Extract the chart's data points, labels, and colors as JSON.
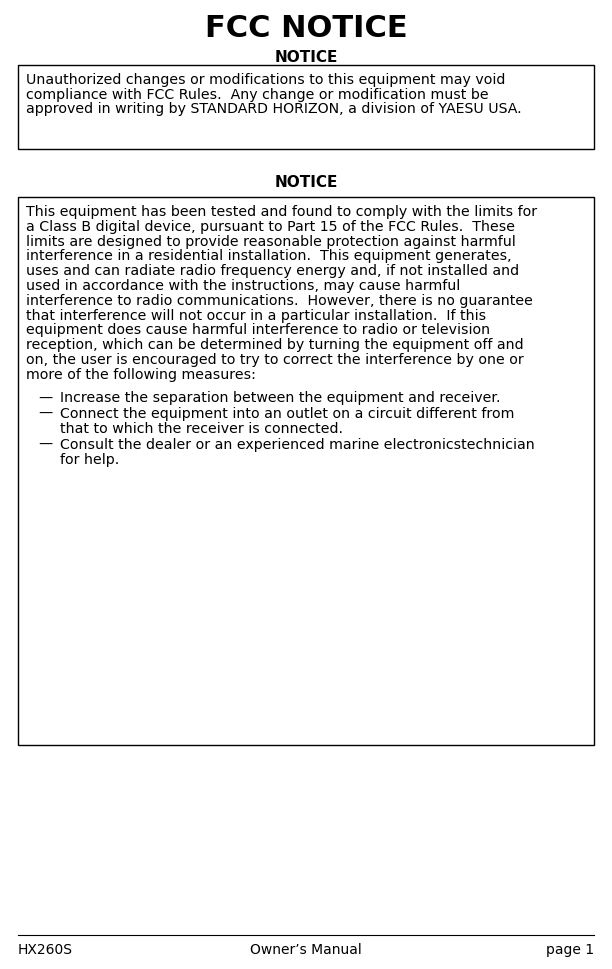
{
  "title": "FCC NOTICE",
  "notice_label": "NOTICE",
  "box1_lines": [
    "Unauthorized changes or modifications to this equipment may void",
    "compliance with FCC Rules.  Any change or modification must be",
    "approved in writing by STANDARD HORIZON, a division of YAESU USA."
  ],
  "box2_lines": [
    "This equipment has been tested and found to comply with the limits for",
    "a Class B digital device, pursuant to Part 15 of the FCC Rules.  These",
    "limits are designed to provide reasonable protection against harmful",
    "interference in a residential installation.  This equipment generates,",
    "uses and can radiate radio frequency energy and, if not installed and",
    "used in accordance with the instructions, may cause harmful",
    "interference to radio communications.  However, there is no guarantee",
    "that interference will not occur in a particular installation.  If this",
    "equipment does cause harmful interference to radio or television",
    "reception, which can be determined by turning the equipment off and",
    "on, the user is encouraged to try to correct the interference by one or",
    "more of the following measures:"
  ],
  "bullets": [
    [
      "Increase the separation between the equipment and receiver."
    ],
    [
      "Connect the equipment into an outlet on a circuit different from",
      "that to which the receiver is connected."
    ],
    [
      "Consult the dealer or an experienced marine electronicstechnician",
      "for help."
    ]
  ],
  "footer_left": "HX260S",
  "footer_center": "Owner’s Manual",
  "footer_right": "page 1",
  "bg_color": "#ffffff",
  "text_color": "#000000",
  "title_fontsize": 22,
  "notice_fontsize": 11,
  "body_fontsize": 10.2,
  "footer_fontsize": 10
}
